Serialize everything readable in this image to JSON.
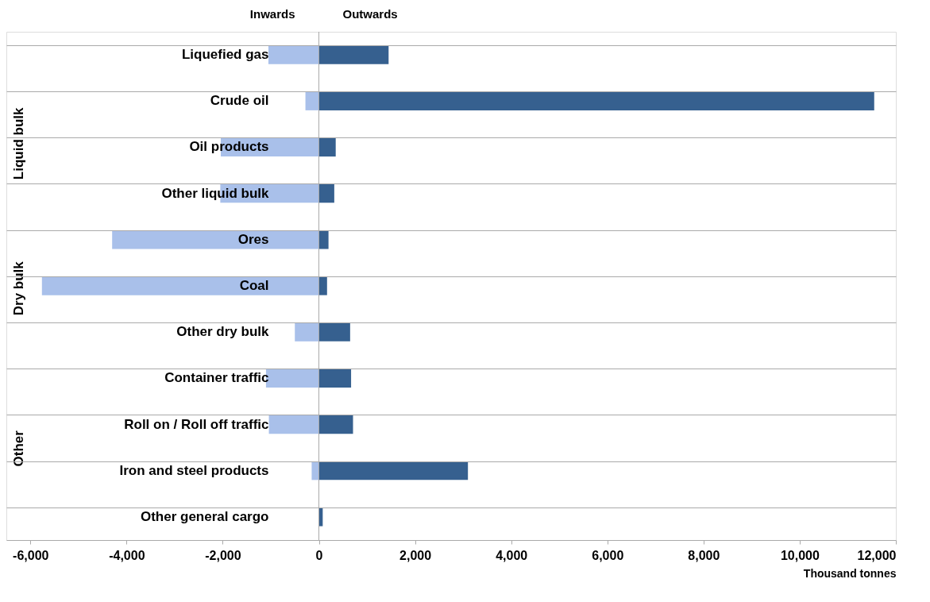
{
  "chart_data": {
    "type": "bar",
    "orientation": "horizontal",
    "xlabel": "Thousand tonnes",
    "categories": [
      "Liquefied gas",
      "Crude oil",
      "Oil products",
      "Other liquid bulk",
      "Ores",
      "Coal",
      "Other dry bulk",
      "Container traffic",
      "Roll on / Roll off traffic",
      "Iron and steel products",
      "Other general cargo"
    ],
    "series": [
      {
        "name": "Inwards",
        "color": "#a9c0ea",
        "values": [
          -1050,
          -280,
          -2040,
          -2050,
          -4300,
          -5760,
          -500,
          -1100,
          -1040,
          -150,
          0
        ]
      },
      {
        "name": "Outwards",
        "color": "#36608f",
        "values": [
          1450,
          11550,
          350,
          320,
          200,
          170,
          650,
          670,
          710,
          3100,
          80
        ]
      }
    ],
    "xlim": [
      -6500,
      12000
    ],
    "xticks": [
      {
        "value": -6000,
        "label": "-6,000"
      },
      {
        "value": -4000,
        "label": "-4,000"
      },
      {
        "value": -2000,
        "label": "-2,000"
      },
      0,
      {
        "value": 2000,
        "label": "2,000"
      },
      {
        "value": 4000,
        "label": "4,000"
      },
      {
        "value": 6000,
        "label": "6,000"
      },
      {
        "value": 8000,
        "label": "8,000"
      },
      {
        "value": 10000,
        "label": "10,000"
      },
      {
        "value": 12000,
        "label": "12,000"
      }
    ],
    "ref_lines": [
      {
        "axis": "x",
        "value": 0,
        "label": null,
        "color": "#aaaaaa"
      }
    ],
    "annotations": [
      "Liquid bulk",
      "Dry bulk",
      "Other"
    ],
    "stacked": true,
    "grid": "y",
    "legend": "top"
  }
}
